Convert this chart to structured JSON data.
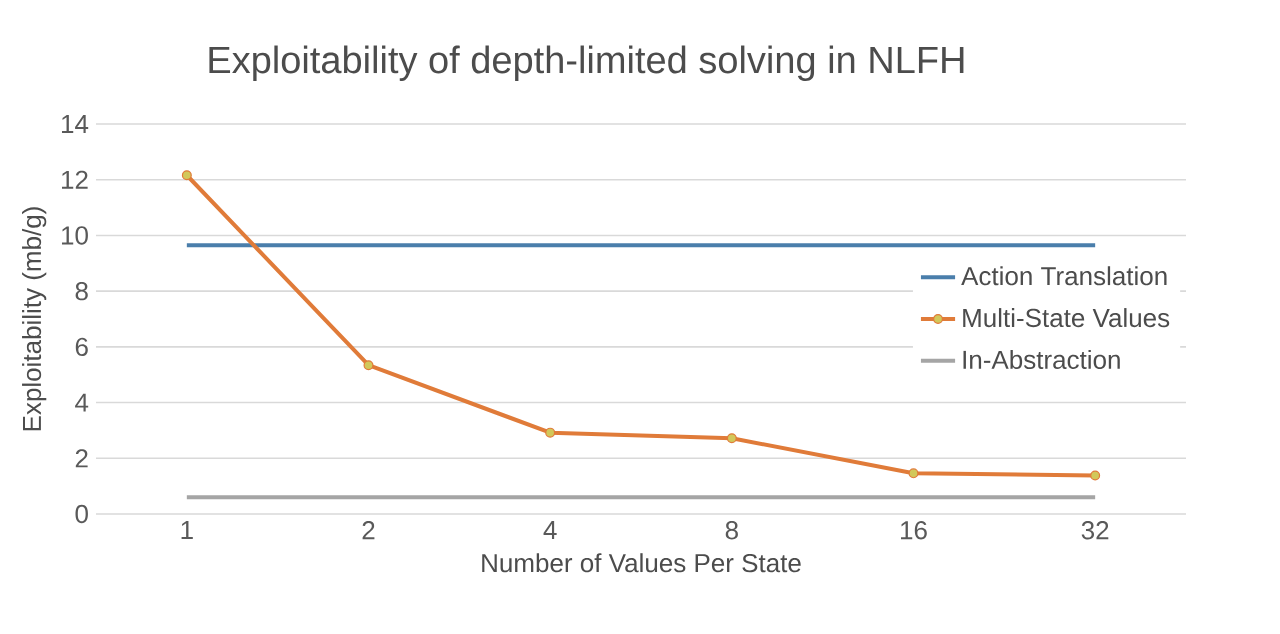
{
  "chart_data": {
    "type": "line",
    "title": "Exploitability of depth-limited solving in NLFH",
    "xlabel": "Number of Values Per State",
    "ylabel": "Exploitability (mb/g)",
    "categories": [
      "1",
      "2",
      "4",
      "8",
      "16",
      "32"
    ],
    "series": [
      {
        "name": "Action Translation",
        "color": "#4a7eab",
        "values": [
          9.65,
          9.65,
          9.65,
          9.65,
          9.65,
          9.65
        ],
        "marker": "none"
      },
      {
        "name": "Multi-State Values",
        "color": "#e07b39",
        "values": [
          12.16,
          5.34,
          2.92,
          2.72,
          1.46,
          1.38
        ],
        "marker": "circle"
      },
      {
        "name": "In-Abstraction",
        "color": "#a5a5a5",
        "values": [
          0.6,
          0.6,
          0.6,
          0.6,
          0.6,
          0.6
        ],
        "marker": "none"
      }
    ],
    "ylim": [
      0,
      14
    ],
    "yticks": [
      0,
      2,
      4,
      6,
      8,
      10,
      12,
      14
    ],
    "grid": "y",
    "legend": "right",
    "line_style": "solid"
  }
}
